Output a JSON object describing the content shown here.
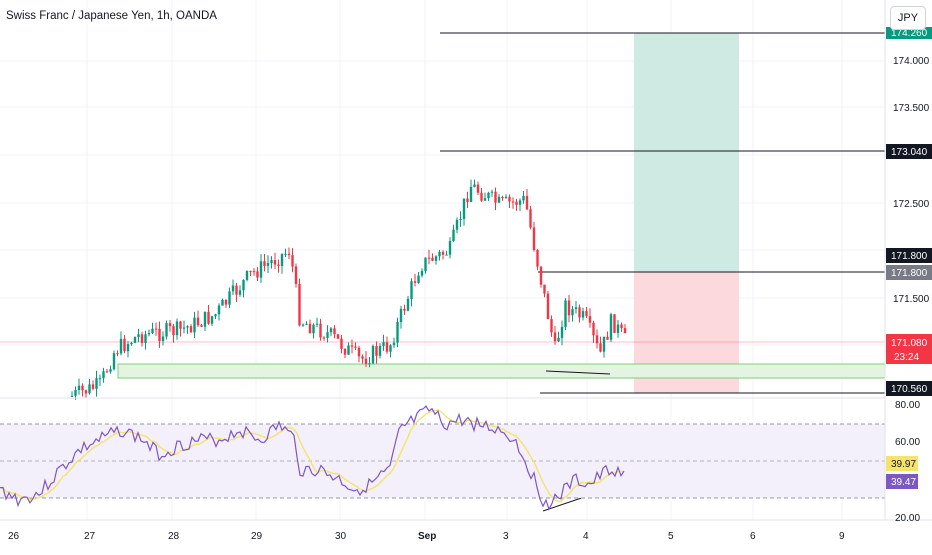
{
  "header": {
    "symbol_title": "Swiss Franc / Japanese Yen, 1h, OANDA",
    "currency_button": "JPY"
  },
  "colors": {
    "up": "#089981",
    "down": "#f23645",
    "rsi_line": "#7e57c2",
    "rsi_ma": "#f5e36b",
    "rsi_band": "#f3effb",
    "profit_zone": "#cfeae2",
    "loss_zone": "#fbd9dc",
    "support_zone": "#e3f4e1"
  },
  "price_axis": {
    "ticks": [
      "174.000",
      "173.500",
      "172.500",
      "171.500"
    ],
    "badges": [
      {
        "label": "174.260",
        "kind": "green"
      },
      {
        "label": "173.040",
        "kind": "black"
      },
      {
        "label": "171.800",
        "kind": "black"
      },
      {
        "label": "171.800",
        "kind": "gray"
      },
      {
        "label": "171.080",
        "kind": "red"
      },
      {
        "label": "23:24",
        "kind": "red-timer"
      },
      {
        "label": "170.560",
        "kind": "black"
      }
    ]
  },
  "rsi_axis": {
    "ticks": [
      "80.00",
      "60.00",
      "20.00"
    ],
    "badges": [
      {
        "label": "39.97",
        "kind": "yellow"
      },
      {
        "label": "39.47",
        "kind": "purple"
      }
    ]
  },
  "time_axis": {
    "labels": [
      "26",
      "27",
      "28",
      "29",
      "30",
      "Sep",
      "3",
      "4",
      "5",
      "6",
      "9"
    ]
  }
}
